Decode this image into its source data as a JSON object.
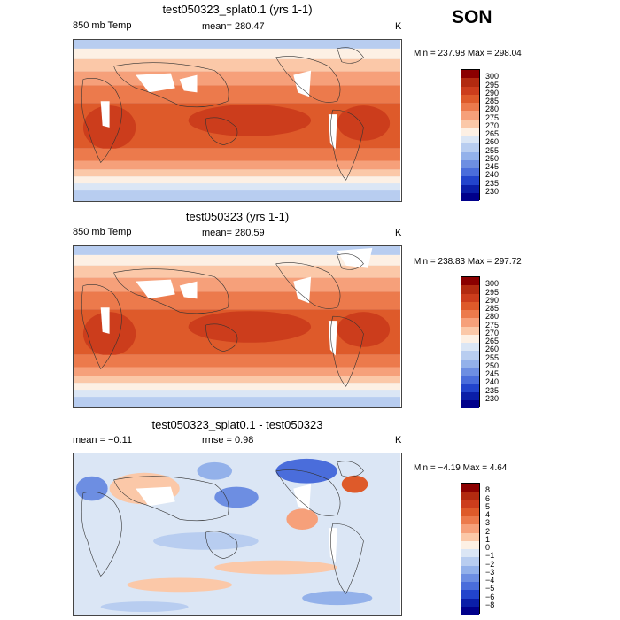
{
  "season": "SON",
  "panels": [
    {
      "title": "test050323_splat0.1 (yrs 1-1)",
      "left_label": "850 mb Temp",
      "center_label": "mean= 280.47",
      "units": "K",
      "minmax": "Min = 237.98 Max = 298.04",
      "colorbar_labels": [
        "300",
        "295",
        "290",
        "285",
        "280",
        "275",
        "270",
        "265",
        "260",
        "255",
        "250",
        "245",
        "240",
        "235",
        "230"
      ],
      "colors": [
        "#8b0000",
        "#b22a10",
        "#cc3d1c",
        "#de5a2a",
        "#ec7a4c",
        "#f6a07a",
        "#fbc8a8",
        "#fdf0e4",
        "#dbe6f5",
        "#b8cdf0",
        "#93b1ea",
        "#6d8ee2",
        "#4a6ddb",
        "#2244cc",
        "#0a1ea8",
        "#00008b"
      ]
    },
    {
      "title": "test050323 (yrs 1-1)",
      "left_label": "850 mb Temp",
      "center_label": "mean= 280.59",
      "units": "K",
      "minmax": "Min = 238.83 Max = 297.72",
      "colorbar_labels": [
        "300",
        "295",
        "290",
        "285",
        "280",
        "275",
        "270",
        "265",
        "260",
        "255",
        "250",
        "245",
        "240",
        "235",
        "230"
      ],
      "colors": [
        "#8b0000",
        "#b22a10",
        "#cc3d1c",
        "#de5a2a",
        "#ec7a4c",
        "#f6a07a",
        "#fbc8a8",
        "#fdf0e4",
        "#dbe6f5",
        "#b8cdf0",
        "#93b1ea",
        "#6d8ee2",
        "#4a6ddb",
        "#2244cc",
        "#0a1ea8",
        "#00008b"
      ]
    },
    {
      "title": "test050323_splat0.1 - test050323",
      "left_label": "mean =  −0.11",
      "center_label": "rmse =   0.98",
      "units": "K",
      "minmax": "Min =  −4.19 Max =   4.64",
      "colorbar_labels": [
        "8",
        "6",
        "5",
        "4",
        "3",
        "2",
        "1",
        "0",
        "−1",
        "−2",
        "−3",
        "−4",
        "−5",
        "−6",
        "−8"
      ],
      "colors": [
        "#8b0000",
        "#b22a10",
        "#cc3d1c",
        "#de5a2a",
        "#ec7a4c",
        "#f6a07a",
        "#fbc8a8",
        "#fdf0e4",
        "#dbe6f5",
        "#b8cdf0",
        "#93b1ea",
        "#6d8ee2",
        "#4a6ddb",
        "#2244cc",
        "#0a1ea8",
        "#00008b"
      ]
    }
  ]
}
